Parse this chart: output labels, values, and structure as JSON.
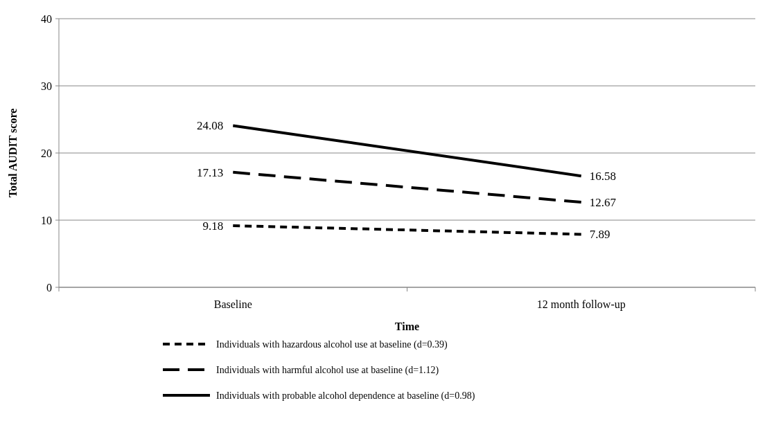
{
  "chart_data": {
    "type": "line",
    "xlabel": "Time",
    "ylabel": "Total AUDIT score",
    "categories": [
      "Baseline",
      "12 month follow-up"
    ],
    "ylim": [
      0,
      40
    ],
    "yticks": [
      0,
      10,
      20,
      30,
      40
    ],
    "grid": "y",
    "legend": "bottom",
    "data_labels": true,
    "series": [
      {
        "name": "Individuals with hazardous alcohol use at baseline (d=0.39)",
        "color": "#000000",
        "line_style": "dashed",
        "values": [
          9.18,
          7.89
        ]
      },
      {
        "name": "Individuals with harmful alcohol  use at baseline (d=1.12)",
        "color": "#000000",
        "line_style": "dashed",
        "values": [
          17.13,
          12.67
        ]
      },
      {
        "name": "Individuals with probable alcohol dependence at baseline (d=0.98)",
        "color": "#000000",
        "line_style": "solid",
        "values": [
          24.08,
          16.58
        ]
      }
    ]
  }
}
